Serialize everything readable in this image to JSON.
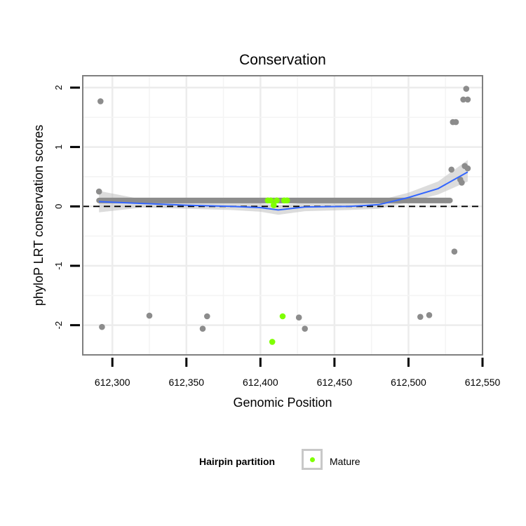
{
  "chart_data": {
    "type": "scatter",
    "title": "Conservation",
    "xlabel": "Genomic Position",
    "ylabel": "phyloP LRT conservation scores",
    "xlim": [
      612280,
      612550
    ],
    "ylim": [
      -2.5,
      2.2
    ],
    "x_ticks": [
      612300,
      612350,
      612400,
      612450,
      612500,
      612550
    ],
    "x_tick_labels": [
      "612,300",
      "612,350",
      "612,400",
      "612,450",
      "612,500",
      "612,550"
    ],
    "y_ticks": [
      2,
      1,
      0,
      -1,
      -2
    ],
    "y_tick_labels": [
      "2",
      "1",
      "0",
      "-1",
      "-2"
    ],
    "grid": true,
    "reference_line": {
      "y": 0,
      "style": "dashed"
    },
    "legend": {
      "title": "Hairpin partition",
      "position": "bottom",
      "entries": [
        {
          "label": "Mature",
          "color": "#7fff00"
        }
      ]
    },
    "series": [
      {
        "name": "",
        "color": "#8c8c8c",
        "points": [
          [
            612291,
            0.25
          ],
          [
            612292,
            1.77
          ],
          [
            612293,
            -2.03
          ],
          [
            612325,
            -1.84
          ],
          [
            612361,
            -2.06
          ],
          [
            612364,
            -1.85
          ],
          [
            612426,
            -1.87
          ],
          [
            612430,
            -2.06
          ],
          [
            612508,
            -1.86
          ],
          [
            612514,
            -1.83
          ],
          [
            612529,
            0.62
          ],
          [
            612530,
            1.42
          ],
          [
            612531,
            -0.76
          ],
          [
            612532,
            1.42
          ],
          [
            612535,
            0.45
          ],
          [
            612536,
            0.4
          ],
          [
            612537,
            1.8
          ],
          [
            612538,
            0.68
          ],
          [
            612539,
            1.98
          ],
          [
            612540,
            1.8
          ],
          [
            612540,
            0.64
          ]
        ],
        "dense_band": {
          "from": 612291,
          "to": 612528,
          "y": 0.1
        }
      },
      {
        "name": "Mature",
        "color": "#7fff00",
        "points": [
          [
            612405,
            0.1
          ],
          [
            612407,
            0.1
          ],
          [
            612409,
            0.02
          ],
          [
            612411,
            0.1
          ],
          [
            612416,
            0.1
          ],
          [
            612418,
            0.1
          ],
          [
            612415,
            -1.85
          ],
          [
            612408,
            -2.28
          ]
        ]
      }
    ],
    "smooth": {
      "color": "#3366ff",
      "x": [
        612291,
        612320,
        612350,
        612380,
        612400,
        612412,
        612430,
        612460,
        612480,
        612500,
        612520,
        612540
      ],
      "y": [
        0.08,
        0.05,
        0.02,
        0.0,
        -0.02,
        -0.06,
        -0.01,
        0.0,
        0.03,
        0.15,
        0.3,
        0.58
      ],
      "band_lower": [
        -0.1,
        -0.02,
        -0.04,
        -0.06,
        -0.09,
        -0.14,
        -0.08,
        -0.06,
        -0.04,
        0.07,
        0.2,
        0.42
      ],
      "band_upper": [
        0.26,
        0.12,
        0.08,
        0.06,
        0.05,
        0.02,
        0.06,
        0.06,
        0.1,
        0.23,
        0.42,
        0.78
      ]
    }
  }
}
